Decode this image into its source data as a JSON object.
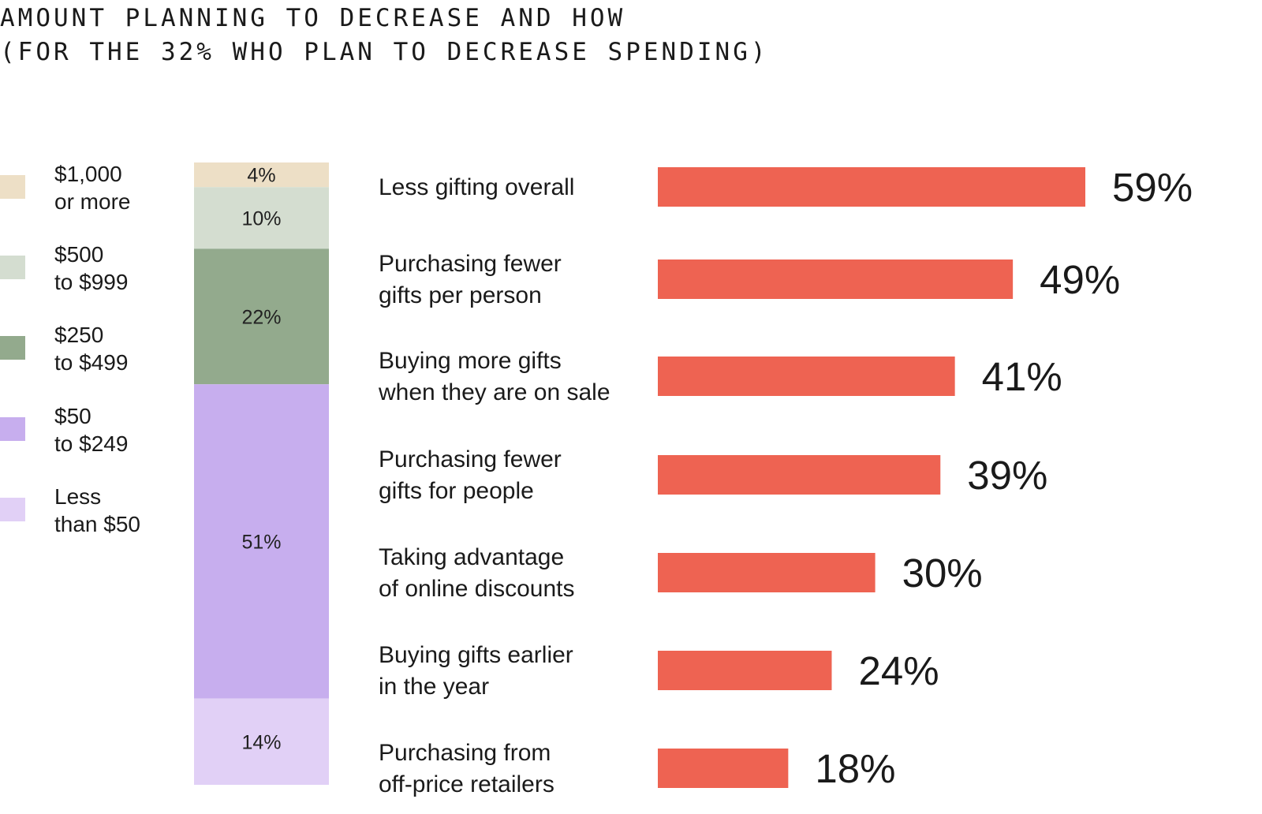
{
  "title": {
    "line1": "AMOUNT PLANNING TO DECREASE AND HOW",
    "line2": "(FOR THE 32% WHO PLAN TO DECREASE SPENDING)"
  },
  "colors": {
    "bar": "#ee6352"
  },
  "chart_data": [
    {
      "type": "stacked_bar",
      "segments": [
        {
          "label_lines": [
            "$1,000",
            "or more"
          ],
          "value": 4,
          "display": "4%",
          "color": "#eddfc6"
        },
        {
          "label_lines": [
            "$500",
            "to $999"
          ],
          "value": 10,
          "display": "10%",
          "color": "#d4ddd0"
        },
        {
          "label_lines": [
            "$250",
            "to $499"
          ],
          "value": 22,
          "display": "22%",
          "color": "#93aa8d"
        },
        {
          "label_lines": [
            "$50",
            "to $249"
          ],
          "value": 51,
          "display": "51%",
          "color": "#c7aeee"
        },
        {
          "label_lines": [
            "Less",
            "than $50"
          ],
          "value": 14,
          "display": "14%",
          "color": "#e1d0f6"
        }
      ]
    },
    {
      "type": "bar",
      "orientation": "horizontal",
      "categories": [
        [
          "Less gifting overall"
        ],
        [
          "Purchasing fewer",
          "gifts per person"
        ],
        [
          "Buying more gifts",
          "when they are on sale"
        ],
        [
          "Purchasing fewer",
          "gifts for people"
        ],
        [
          "Taking advantage",
          "of online discounts"
        ],
        [
          "Buying gifts earlier",
          "in the year"
        ],
        [
          "Purchasing from",
          "off-price retailers"
        ]
      ],
      "values": [
        59,
        49,
        41,
        39,
        30,
        24,
        18
      ],
      "value_labels": [
        "59%",
        "49%",
        "41%",
        "39%",
        "30%",
        "24%",
        "18%"
      ]
    }
  ]
}
